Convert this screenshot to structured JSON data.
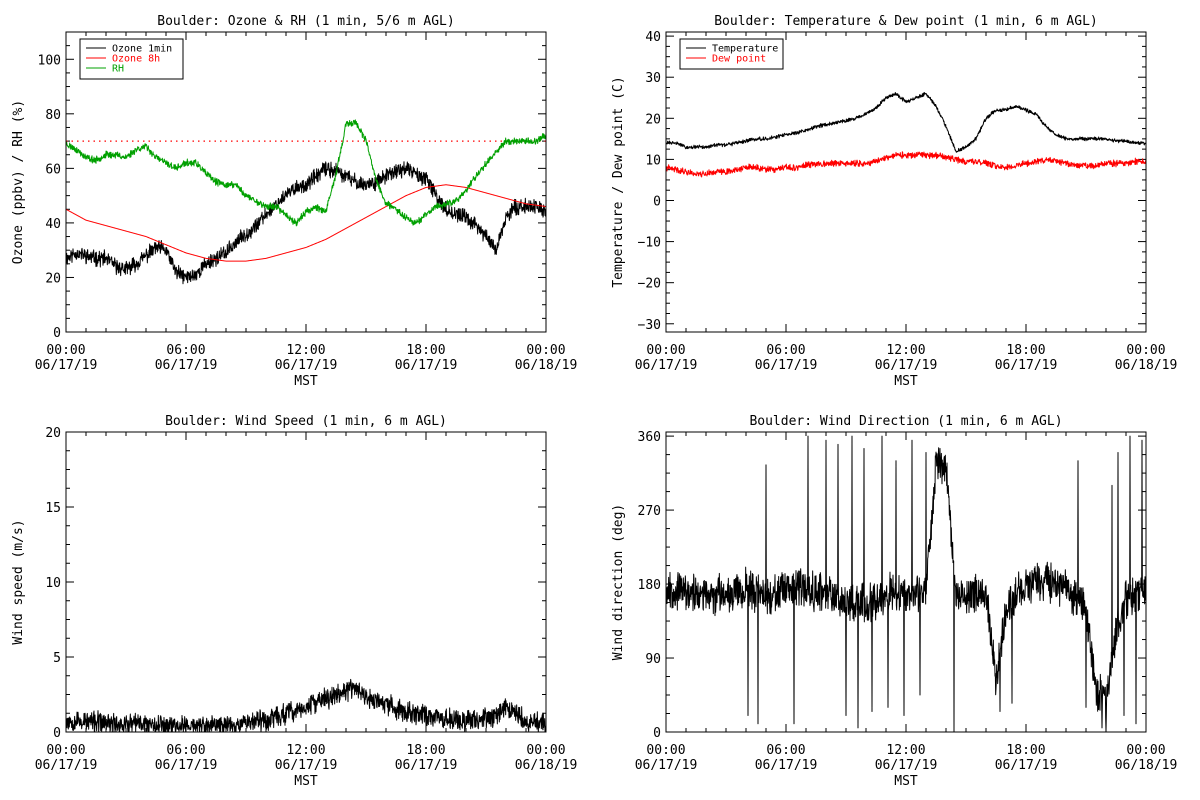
{
  "chart_data": [
    {
      "type": "line",
      "title": "Boulder: Ozone & RH (1 min, 5/6 m AGL)",
      "xlabel": "MST",
      "ylabel": "Ozone (ppbv) / RH (%)",
      "ylim": [
        0,
        110
      ],
      "yticks": [
        "0",
        "20",
        "40",
        "60",
        "80",
        "100"
      ],
      "yticks_values": [
        0,
        20,
        40,
        60,
        80,
        100
      ],
      "xlim": [
        0,
        24
      ],
      "xtick_hours": [
        0,
        6,
        12,
        18,
        24
      ],
      "xtick_time": [
        "00:00",
        "06:00",
        "12:00",
        "18:00",
        "00:00"
      ],
      "xtick_date": [
        "06/17/19",
        "06/17/19",
        "06/17/19",
        "06/17/19",
        "06/18/19"
      ],
      "legend": {
        "placement": "top-left",
        "entries": [
          "Ozone 1min",
          "Ozone 8h",
          "RH"
        ]
      },
      "reference_line": {
        "y": 70,
        "color": "#ff0000",
        "style": "dotted"
      },
      "series": [
        {
          "name": "Ozone 1min",
          "color": "#000000",
          "noise": 2.2,
          "seed": 11,
          "x": [
            0,
            0.5,
            1,
            1.5,
            2,
            2.5,
            3,
            3.5,
            4,
            4.5,
            5,
            5.5,
            6,
            6.5,
            7,
            7.5,
            8,
            8.5,
            9,
            9.5,
            10,
            10.5,
            11,
            11.5,
            12,
            12.5,
            13,
            13.5,
            14,
            14.5,
            15,
            15.5,
            16,
            16.5,
            17,
            17.5,
            18,
            18.5,
            19,
            19.5,
            20,
            20.5,
            21,
            21.5,
            22,
            22.5,
            23,
            23.5,
            24
          ],
          "y": [
            27,
            29,
            28,
            27,
            27,
            24,
            23,
            25,
            28,
            31,
            30,
            22,
            20,
            21,
            25,
            27,
            29,
            33,
            36,
            39,
            43,
            47,
            50,
            53,
            54,
            57,
            60,
            59,
            57,
            55,
            54,
            55,
            57,
            59,
            60,
            58,
            56,
            50,
            45,
            43,
            42,
            39,
            35,
            30,
            42,
            46,
            46,
            46,
            44
          ]
        },
        {
          "name": "Ozone 8h",
          "color": "#ff0000",
          "noise": 0,
          "seed": 0,
          "x": [
            0,
            1,
            2,
            3,
            4,
            5,
            6,
            7,
            8,
            9,
            10,
            11,
            12,
            13,
            14,
            15,
            16,
            17,
            18,
            19,
            20,
            21,
            22,
            23,
            24
          ],
          "y": [
            45,
            41,
            39,
            37,
            35,
            32,
            29,
            27,
            26,
            26,
            27,
            29,
            31,
            34,
            38,
            42,
            46,
            50,
            53,
            54,
            53,
            51,
            49,
            47,
            46
          ]
        },
        {
          "name": "RH",
          "color": "#00a000",
          "noise": 1.0,
          "seed": 23,
          "x": [
            0,
            0.5,
            1,
            1.5,
            2,
            2.5,
            3,
            3.5,
            4,
            4.5,
            5,
            5.5,
            6,
            6.5,
            7,
            7.5,
            8,
            8.5,
            9,
            9.5,
            10,
            10.5,
            11,
            11.5,
            12,
            12.5,
            13,
            13.5,
            14,
            14.5,
            15,
            15.5,
            16,
            16.5,
            17,
            17.5,
            18,
            18.5,
            19,
            19.5,
            20,
            20.5,
            21,
            21.5,
            22,
            22.5,
            23,
            23.5,
            24
          ],
          "y": [
            69,
            67,
            64,
            63,
            65,
            65,
            64,
            67,
            68,
            64,
            62,
            60,
            62,
            62,
            58,
            55,
            54,
            54,
            50,
            48,
            46,
            46,
            43,
            40,
            44,
            46,
            44,
            58,
            76,
            77,
            70,
            56,
            47,
            45,
            42,
            40,
            43,
            46,
            47,
            48,
            52,
            57,
            62,
            66,
            70,
            70,
            70,
            70,
            72
          ]
        }
      ]
    },
    {
      "type": "line",
      "title": "Boulder: Temperature & Dew point (1 min, 6 m AGL)",
      "xlabel": "MST",
      "ylabel": "Temperature / Dew point (C)",
      "ylim": [
        -32,
        41
      ],
      "yticks": [
        "−30",
        "−20",
        "−10",
        "0",
        "10",
        "20",
        "30",
        "40"
      ],
      "yticks_values": [
        -30,
        -20,
        -10,
        0,
        10,
        20,
        30,
        40
      ],
      "xlim": [
        0,
        24
      ],
      "xtick_hours": [
        0,
        6,
        12,
        18,
        24
      ],
      "xtick_time": [
        "00:00",
        "06:00",
        "12:00",
        "18:00",
        "00:00"
      ],
      "xtick_date": [
        "06/17/19",
        "06/17/19",
        "06/17/19",
        "06/17/19",
        "06/18/19"
      ],
      "legend": {
        "placement": "top-left",
        "entries": [
          "Temperature",
          "Dew point"
        ]
      },
      "series": [
        {
          "name": "Temperature",
          "color": "#000000",
          "noise": 0.35,
          "seed": 31,
          "x": [
            0,
            0.5,
            1,
            1.5,
            2,
            2.5,
            3,
            3.5,
            4,
            4.5,
            5,
            5.5,
            6,
            6.5,
            7,
            7.5,
            8,
            8.5,
            9,
            9.5,
            10,
            10.5,
            11,
            11.5,
            12,
            12.5,
            13,
            13.5,
            14,
            14.5,
            15,
            15.5,
            16,
            16.5,
            17,
            17.5,
            18,
            18.5,
            19,
            19.5,
            20,
            20.5,
            21,
            21.5,
            22,
            22.5,
            23,
            23.5,
            24
          ],
          "y": [
            14,
            14,
            13,
            13,
            13,
            13.5,
            13.5,
            14,
            14.5,
            15,
            15,
            15.5,
            16,
            16.5,
            17,
            18,
            18.5,
            19,
            19.5,
            20,
            21,
            22.5,
            25,
            26,
            24,
            25,
            26,
            23,
            18,
            12,
            13,
            15,
            20,
            22,
            22,
            23,
            22,
            21,
            18,
            16,
            15,
            15,
            15,
            15,
            15,
            14.5,
            14.5,
            14,
            14
          ]
        },
        {
          "name": "Dew point",
          "color": "#ff0000",
          "noise": 0.6,
          "seed": 41,
          "x": [
            0,
            0.5,
            1,
            1.5,
            2,
            2.5,
            3,
            3.5,
            4,
            4.5,
            5,
            5.5,
            6,
            6.5,
            7,
            7.5,
            8,
            8.5,
            9,
            9.5,
            10,
            10.5,
            11,
            11.5,
            12,
            12.5,
            13,
            13.5,
            14,
            14.5,
            15,
            15.5,
            16,
            16.5,
            17,
            17.5,
            18,
            18.5,
            19,
            19.5,
            20,
            20.5,
            21,
            21.5,
            22,
            22.5,
            23,
            23.5,
            24
          ],
          "y": [
            8,
            7.5,
            7,
            6.5,
            6.5,
            7,
            7,
            7.5,
            8,
            8,
            7.5,
            7.5,
            8,
            8,
            8.5,
            9,
            9,
            9,
            9,
            9,
            9,
            9.5,
            10.5,
            11,
            11,
            11,
            11,
            11,
            10.5,
            10,
            9.5,
            9.5,
            9,
            8.5,
            8,
            8.5,
            9,
            9.5,
            10,
            9.5,
            9,
            8.5,
            8.5,
            8.5,
            9,
            9,
            9,
            9.5,
            9.5
          ]
        }
      ]
    },
    {
      "type": "line",
      "title": "Boulder: Wind Speed (1 min, 6 m AGL)",
      "xlabel": "",
      "ylabel": "Wind speed (m/s)",
      "ylim": [
        0,
        20
      ],
      "yticks": [
        "0",
        "5",
        "10",
        "15",
        "20"
      ],
      "yticks_values": [
        0,
        5,
        10,
        15,
        20
      ],
      "xlim": [
        0,
        24
      ],
      "xtick_hours": [
        0,
        6,
        12,
        18,
        24
      ],
      "xtick_time": [
        "00:00",
        "06:00",
        "12:00",
        "18:00",
        "00:00"
      ],
      "xtick_date": [
        "06/17/19",
        "06/17/19",
        "06/17/19",
        "06/17/19",
        "06/18/19"
      ],
      "axis_caption": "MST",
      "series": [
        {
          "name": "",
          "color": "#000000",
          "noise": 0.55,
          "seed": 53,
          "floor": 0,
          "x": [
            0,
            1,
            2,
            3,
            4,
            5,
            6,
            7,
            8,
            9,
            10,
            11,
            12,
            12.5,
            13,
            13.5,
            14,
            14.5,
            15,
            16,
            17,
            18,
            19,
            20,
            21,
            21.5,
            22,
            22.5,
            23,
            24
          ],
          "y": [
            0.8,
            0.7,
            0.6,
            0.5,
            0.6,
            0.5,
            0.4,
            0.4,
            0.5,
            0.7,
            0.8,
            1.2,
            1.6,
            2,
            2.2,
            2.5,
            2.7,
            3,
            2.3,
            1.8,
            1.4,
            1.1,
            0.9,
            0.8,
            0.9,
            1,
            1.8,
            1.2,
            0.7,
            0.6
          ]
        }
      ]
    },
    {
      "type": "line",
      "title": "Boulder: Wind Direction (1 min, 6 m AGL)",
      "xlabel": "MST",
      "ylabel": "Wind direction (deg)",
      "ylim": [
        0,
        365
      ],
      "yticks": [
        "0",
        "90",
        "180",
        "270",
        "360"
      ],
      "yticks_values": [
        0,
        90,
        180,
        270,
        360
      ],
      "xlim": [
        0,
        24
      ],
      "xtick_hours": [
        0,
        6,
        12,
        18,
        24
      ],
      "xtick_time": [
        "00:00",
        "06:00",
        "12:00",
        "18:00",
        "00:00"
      ],
      "xtick_date": [
        "06/17/19",
        "06/17/19",
        "06/17/19",
        "06/17/19",
        "06/18/19"
      ],
      "series": [
        {
          "name": "",
          "color": "#000000",
          "noise": 18,
          "seed": 67,
          "floor": 0,
          "ceil": 360,
          "x": [
            0,
            1,
            2,
            3,
            4,
            5,
            6,
            7,
            8,
            9,
            10,
            11,
            12,
            13,
            13.5,
            14,
            14.5,
            15,
            16,
            16.5,
            17,
            18,
            19,
            20,
            21,
            21.5,
            22,
            22.5,
            23,
            24
          ],
          "y": [
            175,
            170,
            165,
            170,
            175,
            165,
            170,
            175,
            170,
            160,
            155,
            170,
            165,
            170,
            330,
            320,
            170,
            165,
            170,
            60,
            150,
            180,
            185,
            175,
            150,
            50,
            40,
            120,
            160,
            175
          ],
          "spikes": [
            {
              "x": 4.1,
              "y": 20
            },
            {
              "x": 4.6,
              "y": 10
            },
            {
              "x": 5.0,
              "y": 325
            },
            {
              "x": 6.4,
              "y": 10
            },
            {
              "x": 7.1,
              "y": 360
            },
            {
              "x": 8.0,
              "y": 355
            },
            {
              "x": 8.6,
              "y": 350
            },
            {
              "x": 9.0,
              "y": 20
            },
            {
              "x": 9.3,
              "y": 360
            },
            {
              "x": 9.6,
              "y": 5
            },
            {
              "x": 9.9,
              "y": 345
            },
            {
              "x": 10.3,
              "y": 25
            },
            {
              "x": 10.8,
              "y": 360
            },
            {
              "x": 11.1,
              "y": 30
            },
            {
              "x": 11.5,
              "y": 330
            },
            {
              "x": 11.9,
              "y": 20
            },
            {
              "x": 12.3,
              "y": 355
            },
            {
              "x": 12.7,
              "y": 45
            },
            {
              "x": 13.0,
              "y": 340
            },
            {
              "x": 14.4,
              "y": 0
            },
            {
              "x": 16.7,
              "y": 25
            },
            {
              "x": 17.3,
              "y": 35
            },
            {
              "x": 20.6,
              "y": 330
            },
            {
              "x": 21.0,
              "y": 30
            },
            {
              "x": 21.8,
              "y": 5
            },
            {
              "x": 22.0,
              "y": 0
            },
            {
              "x": 22.3,
              "y": 300
            },
            {
              "x": 22.6,
              "y": 340
            },
            {
              "x": 22.9,
              "y": 20
            },
            {
              "x": 23.2,
              "y": 360
            },
            {
              "x": 23.5,
              "y": 10
            },
            {
              "x": 23.8,
              "y": 355
            }
          ]
        }
      ]
    }
  ]
}
